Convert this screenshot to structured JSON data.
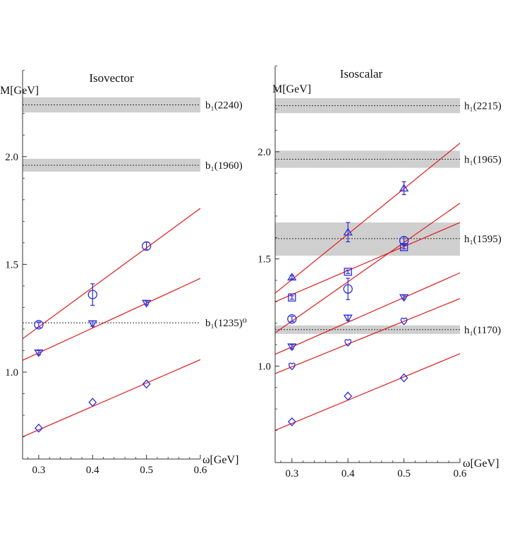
{
  "colors": {
    "marker": "#2b2bd9",
    "fit_line": "#e01a1a",
    "band_fill": "#cfcfcf",
    "axis": "#333333",
    "level_line": "#333333"
  },
  "chart_data": [
    {
      "type": "scatter",
      "title": "Isovector",
      "xlabel": "ω[GeV]",
      "ylabel": "M[GeV]",
      "xlim": [
        0.27,
        0.6
      ],
      "ylim": [
        0.6,
        2.4
      ],
      "x_ticks": [
        0.3,
        0.4,
        0.5,
        0.6
      ],
      "x_tick_labels": [
        "0.3",
        "0.4",
        "0.5",
        "0.6"
      ],
      "y_ticks": [
        1.0,
        1.5,
        2.0
      ],
      "y_tick_labels": [
        "1.0",
        "1.5",
        "2.0"
      ],
      "grid": false,
      "bands": [
        {
          "label": "b₁(2240)",
          "center": 2.24,
          "low": 2.205,
          "high": 2.275
        },
        {
          "label": "b₁(1960)",
          "center": 1.96,
          "low": 1.93,
          "high": 1.99
        },
        {
          "label": "b₁(1235)⁰",
          "center": 1.229,
          "low": 1.229,
          "high": 1.229
        }
      ],
      "series": [
        {
          "marker": "circle",
          "x": [
            0.3,
            0.4,
            0.5
          ],
          "y": [
            1.22,
            1.36,
            1.585
          ],
          "err": [
            0.012,
            0.05,
            0.018
          ]
        },
        {
          "marker": "triangle-down",
          "x": [
            0.3,
            0.4,
            0.5
          ],
          "y": [
            1.09,
            1.225,
            1.32
          ],
          "err": [
            0.01,
            0.012,
            0.008
          ]
        },
        {
          "marker": "diamond",
          "x": [
            0.3,
            0.4,
            0.5
          ],
          "y": [
            0.74,
            0.86,
            0.945
          ],
          "err": [
            0,
            0,
            0
          ]
        }
      ],
      "fit_lines": [
        {
          "x": [
            0.27,
            0.6
          ],
          "y": [
            1.155,
            1.76
          ]
        },
        {
          "x": [
            0.27,
            0.6
          ],
          "y": [
            1.055,
            1.435
          ]
        },
        {
          "x": [
            0.27,
            0.6
          ],
          "y": [
            0.7,
            1.058
          ]
        }
      ]
    },
    {
      "type": "scatter",
      "title": "Isoscalar",
      "xlabel": "ω[GeV]",
      "ylabel": "M[GeV]",
      "xlim": [
        0.27,
        0.6
      ],
      "ylim": [
        0.6,
        2.4
      ],
      "x_ticks": [
        0.3,
        0.4,
        0.5,
        0.6
      ],
      "x_tick_labels": [
        "0.3",
        "0.4",
        "0.5",
        "0.6"
      ],
      "y_ticks": [
        1.0,
        1.5,
        2.0
      ],
      "y_tick_labels": [
        "1.0",
        "1.5",
        "2.0"
      ],
      "grid": false,
      "bands": [
        {
          "label": "h₁(2215)",
          "center": 2.215,
          "low": 2.18,
          "high": 2.25
        },
        {
          "label": "h₁(1965)",
          "center": 1.965,
          "low": 1.925,
          "high": 2.005
        },
        {
          "label": "h₁(1595)",
          "center": 1.595,
          "low": 1.515,
          "high": 1.67
        },
        {
          "label": "h₁(1170)",
          "center": 1.17,
          "low": 1.15,
          "high": 1.19
        }
      ],
      "series": [
        {
          "marker": "triangle-up",
          "x": [
            0.3,
            0.4,
            0.5
          ],
          "y": [
            1.415,
            1.625,
            1.83
          ],
          "err": [
            0.008,
            0.045,
            0.03
          ]
        },
        {
          "marker": "square",
          "x": [
            0.3,
            0.4,
            0.5
          ],
          "y": [
            1.32,
            1.44,
            1.555
          ],
          "err": [
            0.008,
            0.008,
            0.008
          ]
        },
        {
          "marker": "circle",
          "x": [
            0.3,
            0.4,
            0.5
          ],
          "y": [
            1.22,
            1.36,
            1.585
          ],
          "err": [
            0.012,
            0.05,
            0.018
          ]
        },
        {
          "marker": "triangle-down",
          "x": [
            0.3,
            0.4,
            0.5
          ],
          "y": [
            1.09,
            1.225,
            1.32
          ],
          "err": [
            0.01,
            0.012,
            0.008
          ]
        },
        {
          "marker": "heart",
          "x": [
            0.3,
            0.4,
            0.5
          ],
          "y": [
            1.0,
            1.11,
            1.21
          ],
          "err": [
            0,
            0,
            0
          ]
        },
        {
          "marker": "diamond",
          "x": [
            0.3,
            0.4,
            0.5
          ],
          "y": [
            0.74,
            0.86,
            0.945
          ],
          "err": [
            0,
            0,
            0
          ]
        }
      ],
      "fit_lines": [
        {
          "x": [
            0.27,
            0.6
          ],
          "y": [
            1.34,
            2.04
          ]
        },
        {
          "x": [
            0.27,
            0.6
          ],
          "y": [
            1.3,
            1.67
          ]
        },
        {
          "x": [
            0.27,
            0.6
          ],
          "y": [
            1.155,
            1.76
          ]
        },
        {
          "x": [
            0.27,
            0.6
          ],
          "y": [
            1.055,
            1.435
          ]
        },
        {
          "x": [
            0.27,
            0.6
          ],
          "y": [
            0.965,
            1.315
          ]
        },
        {
          "x": [
            0.27,
            0.6
          ],
          "y": [
            0.7,
            1.058
          ]
        }
      ]
    }
  ]
}
